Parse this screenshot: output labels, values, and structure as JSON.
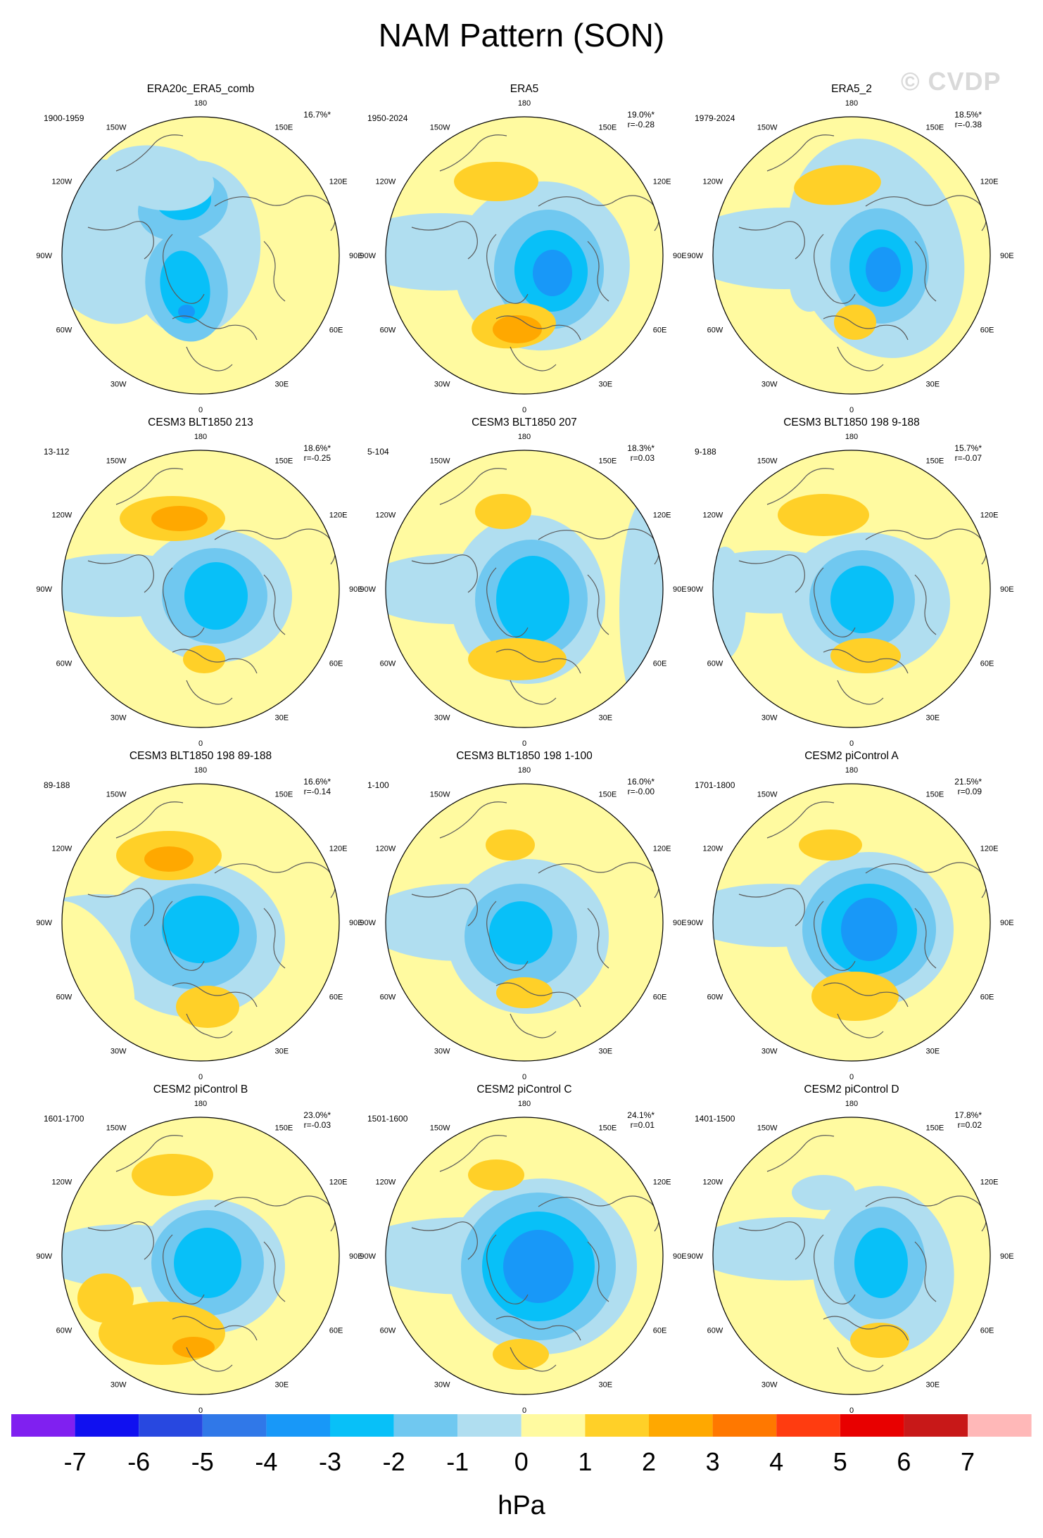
{
  "title": "NAM Pattern (SON)",
  "watermark": "© CVDP",
  "lon_labels": [
    "180",
    "150E",
    "120E",
    "90E",
    "60E",
    "30E",
    "0",
    "30W",
    "60W",
    "90W",
    "120W",
    "150W"
  ],
  "panels": [
    {
      "title": "ERA20c_ERA5_comb",
      "period": "1900-1959",
      "pct": "16.7%*",
      "r": ""
    },
    {
      "title": "ERA5",
      "period": "1950-2024",
      "pct": "19.0%*",
      "r": "r=-0.28"
    },
    {
      "title": "ERA5_2",
      "period": "1979-2024",
      "pct": "18.5%*",
      "r": "r=-0.38"
    },
    {
      "title": "CESM3 BLT1850 213",
      "period": "13-112",
      "pct": "18.6%*",
      "r": "r=-0.25"
    },
    {
      "title": "CESM3 BLT1850 207",
      "period": "5-104",
      "pct": "18.3%*",
      "r": "r=0.03"
    },
    {
      "title": "CESM3 BLT1850 198 9-188",
      "period": "9-188",
      "pct": "15.7%*",
      "r": "r=-0.07"
    },
    {
      "title": "CESM3 BLT1850 198 89-188",
      "period": "89-188",
      "pct": "16.6%*",
      "r": "r=-0.14"
    },
    {
      "title": "CESM3 BLT1850 198 1-100",
      "period": "1-100",
      "pct": "16.0%*",
      "r": "r=-0.00"
    },
    {
      "title": "CESM2 piControl A",
      "period": "1701-1800",
      "pct": "21.5%*",
      "r": "r=0.09"
    },
    {
      "title": "CESM2 piControl B",
      "period": "1601-1700",
      "pct": "23.0%*",
      "r": "r=-0.03"
    },
    {
      "title": "CESM2 piControl C",
      "period": "1501-1600",
      "pct": "24.1%*",
      "r": "r=0.01"
    },
    {
      "title": "CESM2 piControl D",
      "period": "1401-1500",
      "pct": "17.8%*",
      "r": "r=0.02"
    }
  ],
  "colorbar": {
    "colors": [
      "#8020f0",
      "#1010f0",
      "#2848e0",
      "#3078e8",
      "#1898f8",
      "#08c0f8",
      "#70c8f0",
      "#b0def0",
      "#fffaa0",
      "#ffd028",
      "#ffa800",
      "#ff7800",
      "#ff3c10",
      "#e80000",
      "#c81818",
      "#ffb8b8"
    ],
    "tick_labels": [
      "-7",
      "-6",
      "-5",
      "-4",
      "-3",
      "-2",
      "-1",
      "0",
      "1",
      "2",
      "3",
      "4",
      "5",
      "6",
      "7"
    ],
    "unit": "hPa"
  }
}
